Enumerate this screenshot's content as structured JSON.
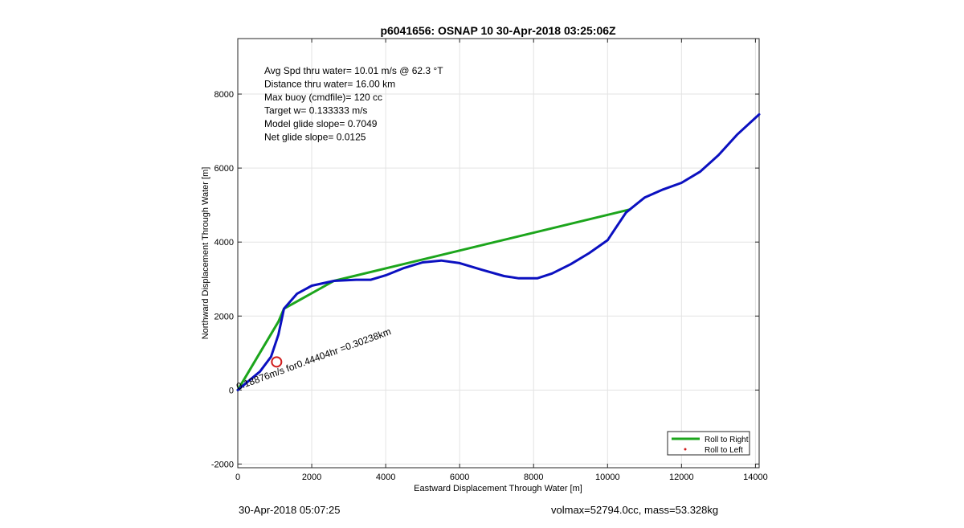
{
  "chart_data": {
    "type": "line",
    "title": "p6041656: OSNAP 10 30-Apr-2018 03:25:06Z",
    "xlabel": "Eastward Displacement Through Water [m]",
    "ylabel": "Northward Displacement Through Water [m]",
    "xlim": [
      0,
      14100
    ],
    "ylim": [
      -2100,
      9500
    ],
    "xticks": [
      0,
      2000,
      4000,
      6000,
      8000,
      10000,
      12000,
      14000
    ],
    "yticks": [
      -2000,
      0,
      2000,
      4000,
      6000,
      8000
    ],
    "grid": true,
    "legend_position": "bottom-right",
    "annotations": [
      "Avg Spd thru water= 10.01 m/s @  62.3 °T",
      "Distance thru water= 16.00 km",
      "Max buoy (cmdfile)= 120 cc",
      "Target w= 0.133333 m/s",
      "Model glide slope= 0.7049",
      "Net glide slope= 0.0125"
    ],
    "diagonal_label": {
      "text": "0.18876m/s for0.44404hr =0.30238km",
      "x": 0,
      "y": 0,
      "angle_deg": -20
    },
    "marker": {
      "label": "",
      "x": 1050,
      "y": 760,
      "color": "#d01c1c"
    },
    "series": [
      {
        "name": "",
        "color": "#0b10c0",
        "x": [
          0,
          300,
          600,
          900,
          1100,
          1250,
          1600,
          2000,
          2600,
          3200,
          3600,
          4000,
          4500,
          5000,
          5500,
          6000,
          6600,
          7200,
          7600,
          8100,
          8500,
          9000,
          9500,
          10000,
          10500,
          11000,
          11500,
          12000,
          12500,
          13000,
          13500,
          14100
        ],
        "y": [
          0,
          250,
          500,
          900,
          1500,
          2200,
          2600,
          2820,
          2950,
          2980,
          2980,
          3100,
          3300,
          3450,
          3500,
          3430,
          3250,
          3080,
          3020,
          3020,
          3150,
          3400,
          3700,
          4050,
          4800,
          5200,
          5420,
          5600,
          5900,
          6350,
          6900,
          7450
        ]
      },
      {
        "name": "Roll to Right",
        "color": "#1ca51c",
        "x": [
          0,
          1100,
          1250,
          2600,
          10600
        ],
        "y": [
          0,
          1850,
          2200,
          2950,
          4880
        ]
      },
      {
        "name": "Roll to Left",
        "color": "#d01c1c",
        "x": [],
        "y": []
      }
    ],
    "legend": [
      {
        "label": "Roll to Right",
        "style": "line",
        "color": "#1ca51c"
      },
      {
        "label": "Roll to Left",
        "style": "dot",
        "color": "#d01c1c"
      }
    ]
  },
  "footer": {
    "left": "30-Apr-2018 05:07:25",
    "right": "volmax=52794.0cc, mass=53.328kg"
  }
}
